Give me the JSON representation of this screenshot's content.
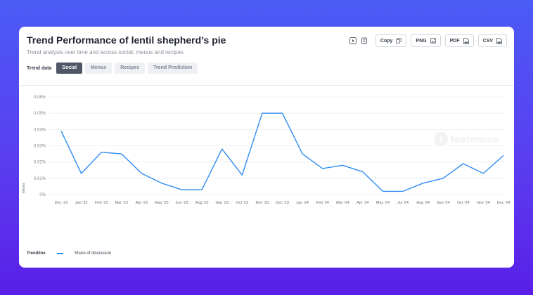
{
  "header": {
    "title": "Trend Performance of lentil shepherd’s pie",
    "subtitle": "Trend analysis over time and across social, menus and recipes"
  },
  "tabs": {
    "label": "Trend data",
    "items": [
      "Social",
      "Menus",
      "Recipes",
      "Trend Prediction"
    ],
    "active": "Social"
  },
  "toolbar": {
    "copy_label": "Copy",
    "png_label": "PNG",
    "pdf_label": "PDF",
    "csv_label": "CSV"
  },
  "watermark": "tastewise",
  "legend": {
    "title": "Trendline",
    "series_name": "Share of discussion"
  },
  "colors": {
    "accent": "#2f8cf2",
    "active_tab": "#4f5666"
  },
  "chart_data": {
    "type": "line",
    "ylabel": "Values",
    "ylim": [
      0,
      0.06
    ],
    "yticks": [
      0,
      0.01,
      0.02,
      0.03,
      0.04,
      0.05,
      0.06
    ],
    "ytick_labels": [
      "0%",
      "0.01%",
      "0.02%",
      "0.03%",
      "0.04%",
      "0.05%",
      "0.06%"
    ],
    "grid": true,
    "categories": [
      "Dec '22",
      "Jan '23",
      "Feb '23",
      "Mar '23",
      "Apr '23",
      "May '23",
      "Jun '23",
      "Aug '23",
      "Sep '23",
      "Oct '23",
      "Nov '23",
      "Dec '23",
      "Jan '24",
      "Feb '24",
      "Mar '24",
      "Apr '24",
      "May '24",
      "Jul '24",
      "Aug '24",
      "Sep '24",
      "Oct '24",
      "Nov '24",
      "Dec '24"
    ],
    "series": [
      {
        "name": "Share of discussion",
        "values": [
          0.039,
          0.013,
          0.026,
          0.025,
          0.013,
          0.007,
          0.003,
          0.003,
          0.028,
          0.012,
          0.05,
          0.05,
          0.025,
          0.016,
          0.018,
          0.014,
          0.002,
          0.002,
          0.007,
          0.01,
          0.019,
          0.013,
          0.024
        ]
      }
    ]
  }
}
